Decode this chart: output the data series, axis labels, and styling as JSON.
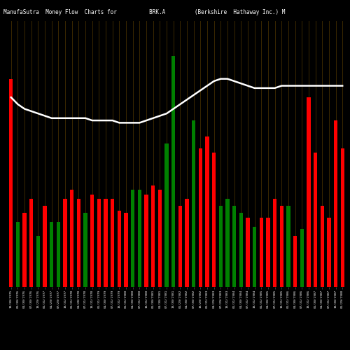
{
  "title": "ManufaSutra  Money Flow  Charts for          BRK.A         (Berkshire  Hathaway Inc.) M",
  "bg_color": "#000000",
  "grid_color": "#3a2800",
  "line_color": "#ffffff",
  "bar_colors_pattern": [
    "red",
    "green",
    "red",
    "red",
    "green",
    "red",
    "green",
    "green",
    "red",
    "red",
    "red",
    "green",
    "red",
    "red",
    "red",
    "red",
    "red",
    "red",
    "green",
    "green",
    "red",
    "red",
    "red",
    "green",
    "green",
    "red",
    "red",
    "green",
    "red",
    "red",
    "red",
    "green",
    "green",
    "green",
    "green",
    "red",
    "green",
    "red",
    "red",
    "red",
    "red",
    "green",
    "red",
    "green",
    "red",
    "red",
    "red",
    "red",
    "red",
    "red"
  ],
  "bar_heights": [
    0.9,
    0.28,
    0.32,
    0.38,
    0.22,
    0.35,
    0.28,
    0.28,
    0.38,
    0.42,
    0.38,
    0.32,
    0.4,
    0.38,
    0.38,
    0.38,
    0.33,
    0.32,
    0.42,
    0.42,
    0.4,
    0.44,
    0.42,
    0.62,
    1.0,
    0.35,
    0.38,
    0.72,
    0.6,
    0.65,
    0.58,
    0.35,
    0.38,
    0.35,
    0.32,
    0.3,
    0.26,
    0.3,
    0.3,
    0.38,
    0.35,
    0.35,
    0.22,
    0.25,
    0.82,
    0.58,
    0.35,
    0.3,
    0.72,
    0.6
  ],
  "line_values": [
    0.82,
    0.79,
    0.77,
    0.76,
    0.75,
    0.74,
    0.73,
    0.73,
    0.73,
    0.73,
    0.73,
    0.73,
    0.72,
    0.72,
    0.72,
    0.72,
    0.71,
    0.71,
    0.71,
    0.71,
    0.72,
    0.73,
    0.74,
    0.75,
    0.77,
    0.79,
    0.81,
    0.83,
    0.85,
    0.87,
    0.89,
    0.9,
    0.9,
    0.89,
    0.88,
    0.87,
    0.86,
    0.86,
    0.86,
    0.86,
    0.87,
    0.87,
    0.87,
    0.87,
    0.87,
    0.87,
    0.87,
    0.87,
    0.87,
    0.87
  ],
  "tick_labels": [
    "10/30/1975",
    "01/30/1976",
    "04/30/1976",
    "07/30/1976",
    "10/29/1976",
    "01/31/1977",
    "04/29/1977",
    "07/29/1977",
    "10/31/1977",
    "01/31/1978",
    "04/28/1978",
    "07/31/1978",
    "10/31/1978",
    "01/31/1979",
    "04/30/1979",
    "07/31/1979",
    "10/31/1979",
    "01/31/1980",
    "04/30/1980",
    "07/31/1980",
    "10/31/1980",
    "01/30/1981",
    "04/30/1981",
    "07/31/1981",
    "10/30/1981",
    "01/29/1982",
    "04/30/1982",
    "07/30/1982",
    "10/29/1982",
    "01/31/1983",
    "04/29/1983",
    "07/29/1983",
    "10/31/1983",
    "01/31/1984",
    "04/30/1984",
    "07/31/1984",
    "10/31/1984",
    "01/31/1985",
    "04/30/1985",
    "07/31/1985",
    "10/31/1985",
    "01/31/1986",
    "04/30/1986",
    "07/31/1986",
    "10/31/1986",
    "01/30/1987",
    "04/30/1987",
    "07/31/1987",
    "10/30/1987",
    "01/29/1988"
  ],
  "ylim": [
    0,
    1.15
  ],
  "bar_width": 0.55,
  "title_fontsize": 5.5,
  "tick_fontsize": 3.2,
  "line_width": 1.8
}
